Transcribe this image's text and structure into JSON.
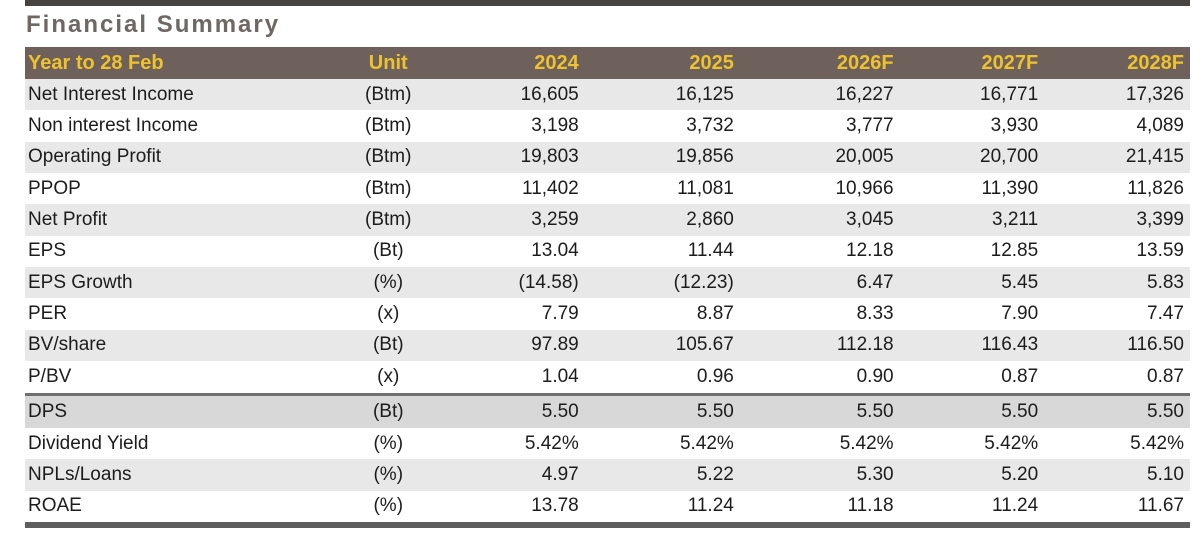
{
  "page": {
    "title": "Financial Summary"
  },
  "colors": {
    "header_bg": "#6e615b",
    "header_text": "#eec22e",
    "title_text": "#6f6763",
    "stripe_bg": "#e8e8e8",
    "highlight_bg": "#d8d8d8",
    "highlight_border": "#707070",
    "top_bar": "#474340",
    "bottom_bar": "#5e5e5e"
  },
  "table": {
    "columns": [
      "Year to 28 Feb",
      "Unit",
      "2024",
      "2025",
      "2026F",
      "2027F",
      "2028F"
    ],
    "rows": [
      {
        "label": "Net Interest Income",
        "unit": "(Btm)",
        "values": [
          "16,605",
          "16,125",
          "16,227",
          "16,771",
          "17,326"
        ],
        "highlight": false
      },
      {
        "label": "Non interest Income",
        "unit": "(Btm)",
        "values": [
          "3,198",
          "3,732",
          "3,777",
          "3,930",
          "4,089"
        ],
        "highlight": false
      },
      {
        "label": "Operating Profit",
        "unit": "(Btm)",
        "values": [
          "19,803",
          "19,856",
          "20,005",
          "20,700",
          "21,415"
        ],
        "highlight": false
      },
      {
        "label": "PPOP",
        "unit": "(Btm)",
        "values": [
          "11,402",
          "11,081",
          "10,966",
          "11,390",
          "11,826"
        ],
        "highlight": false
      },
      {
        "label": "Net Profit",
        "unit": "(Btm)",
        "values": [
          "3,259",
          "2,860",
          "3,045",
          "3,211",
          "3,399"
        ],
        "highlight": false
      },
      {
        "label": "EPS",
        "unit": "(Bt)",
        "values": [
          "13.04",
          "11.44",
          "12.18",
          "12.85",
          "13.59"
        ],
        "highlight": false
      },
      {
        "label": "EPS Growth",
        "unit": "(%)",
        "values": [
          "(14.58)",
          "(12.23)",
          "6.47",
          "5.45",
          "5.83"
        ],
        "highlight": false
      },
      {
        "label": "PER",
        "unit": "(x)",
        "values": [
          "7.79",
          "8.87",
          "8.33",
          "7.90",
          "7.47"
        ],
        "highlight": false
      },
      {
        "label": "BV/share",
        "unit": "(Bt)",
        "values": [
          "97.89",
          "105.67",
          "112.18",
          "116.43",
          "116.50"
        ],
        "highlight": false
      },
      {
        "label": "P/BV",
        "unit": "(x)",
        "values": [
          "1.04",
          "0.96",
          "0.90",
          "0.87",
          "0.87"
        ],
        "highlight": false
      },
      {
        "label": "DPS",
        "unit": "(Bt)",
        "values": [
          "5.50",
          "5.50",
          "5.50",
          "5.50",
          "5.50"
        ],
        "highlight": true
      },
      {
        "label": "Dividend Yield",
        "unit": "(%)",
        "values": [
          "5.42%",
          "5.42%",
          "5.42%",
          "5.42%",
          "5.42%"
        ],
        "highlight": false
      },
      {
        "label": "NPLs/Loans",
        "unit": "(%)",
        "values": [
          "4.97",
          "5.22",
          "5.30",
          "5.20",
          "5.10"
        ],
        "highlight": false
      },
      {
        "label": "ROAE",
        "unit": "(%)",
        "values": [
          "13.78",
          "11.24",
          "11.18",
          "11.24",
          "11.67"
        ],
        "highlight": false
      }
    ]
  }
}
